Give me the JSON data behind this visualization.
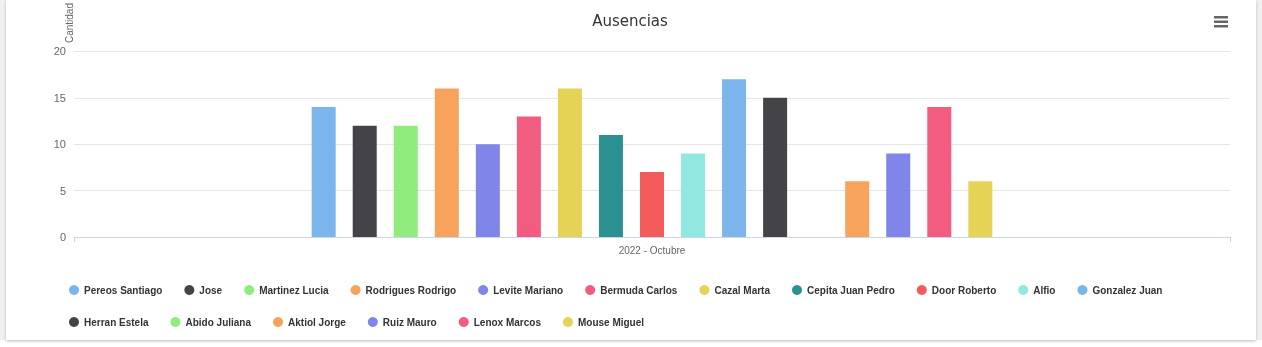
{
  "chart_data": {
    "type": "bar",
    "title": "Ausencias",
    "ylabel": "Cantidad",
    "categories": [
      "2022 - Octubre"
    ],
    "series": [
      {
        "name": "Pereos Santiago",
        "color": "#7cb5ec",
        "values": [
          14
        ]
      },
      {
        "name": "Jose",
        "color": "#434348",
        "values": [
          12
        ]
      },
      {
        "name": "Martinez Lucia",
        "color": "#90ed7d",
        "values": [
          12
        ]
      },
      {
        "name": "Rodrigues Rodrigo",
        "color": "#f7a35c",
        "values": [
          16
        ]
      },
      {
        "name": "Levite Mariano",
        "color": "#8085e9",
        "values": [
          10
        ]
      },
      {
        "name": "Bermuda Carlos",
        "color": "#f15c80",
        "values": [
          13
        ]
      },
      {
        "name": "Cazal Marta",
        "color": "#e4d354",
        "values": [
          16
        ]
      },
      {
        "name": "Cepita Juan Pedro",
        "color": "#2b908f",
        "values": [
          11
        ]
      },
      {
        "name": "Door Roberto",
        "color": "#f45b5b",
        "values": [
          7
        ]
      },
      {
        "name": "Alfio",
        "color": "#91e8e1",
        "values": [
          9
        ]
      },
      {
        "name": "Gonzalez Juan",
        "color": "#7cb5ec",
        "values": [
          17
        ]
      },
      {
        "name": "Herran Estela",
        "color": "#434348",
        "values": [
          15
        ]
      },
      {
        "name": "Abido Juliana",
        "color": "#90ed7d",
        "values": [
          0
        ]
      },
      {
        "name": "Aktiol Jorge",
        "color": "#f7a35c",
        "values": [
          6
        ]
      },
      {
        "name": "Ruiz Mauro",
        "color": "#8085e9",
        "values": [
          9
        ]
      },
      {
        "name": "Lenox Marcos",
        "color": "#f15c80",
        "values": [
          14
        ]
      },
      {
        "name": "Mouse Miguel",
        "color": "#e4d354",
        "values": [
          6
        ]
      }
    ],
    "ylim": [
      0,
      20
    ],
    "yticks": [
      0,
      5,
      10,
      15,
      20
    ],
    "grid": "y",
    "legend": "bottom",
    "marker": "circle"
  }
}
